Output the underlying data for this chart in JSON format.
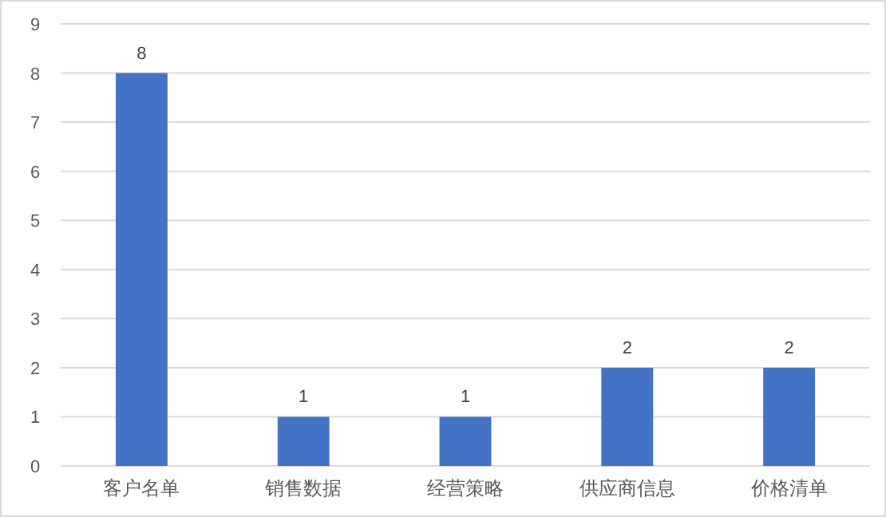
{
  "chart_data": {
    "type": "bar",
    "categories": [
      "客户名单",
      "销售数据",
      "经营策略",
      "供应商信息",
      "价格清单"
    ],
    "values": [
      8,
      1,
      1,
      2,
      2
    ],
    "color": "#4472c4",
    "ylim": [
      0,
      9
    ],
    "yticks": [
      0,
      1,
      2,
      3,
      4,
      5,
      6,
      7,
      8,
      9
    ],
    "grid": "y",
    "data_labels": true
  }
}
